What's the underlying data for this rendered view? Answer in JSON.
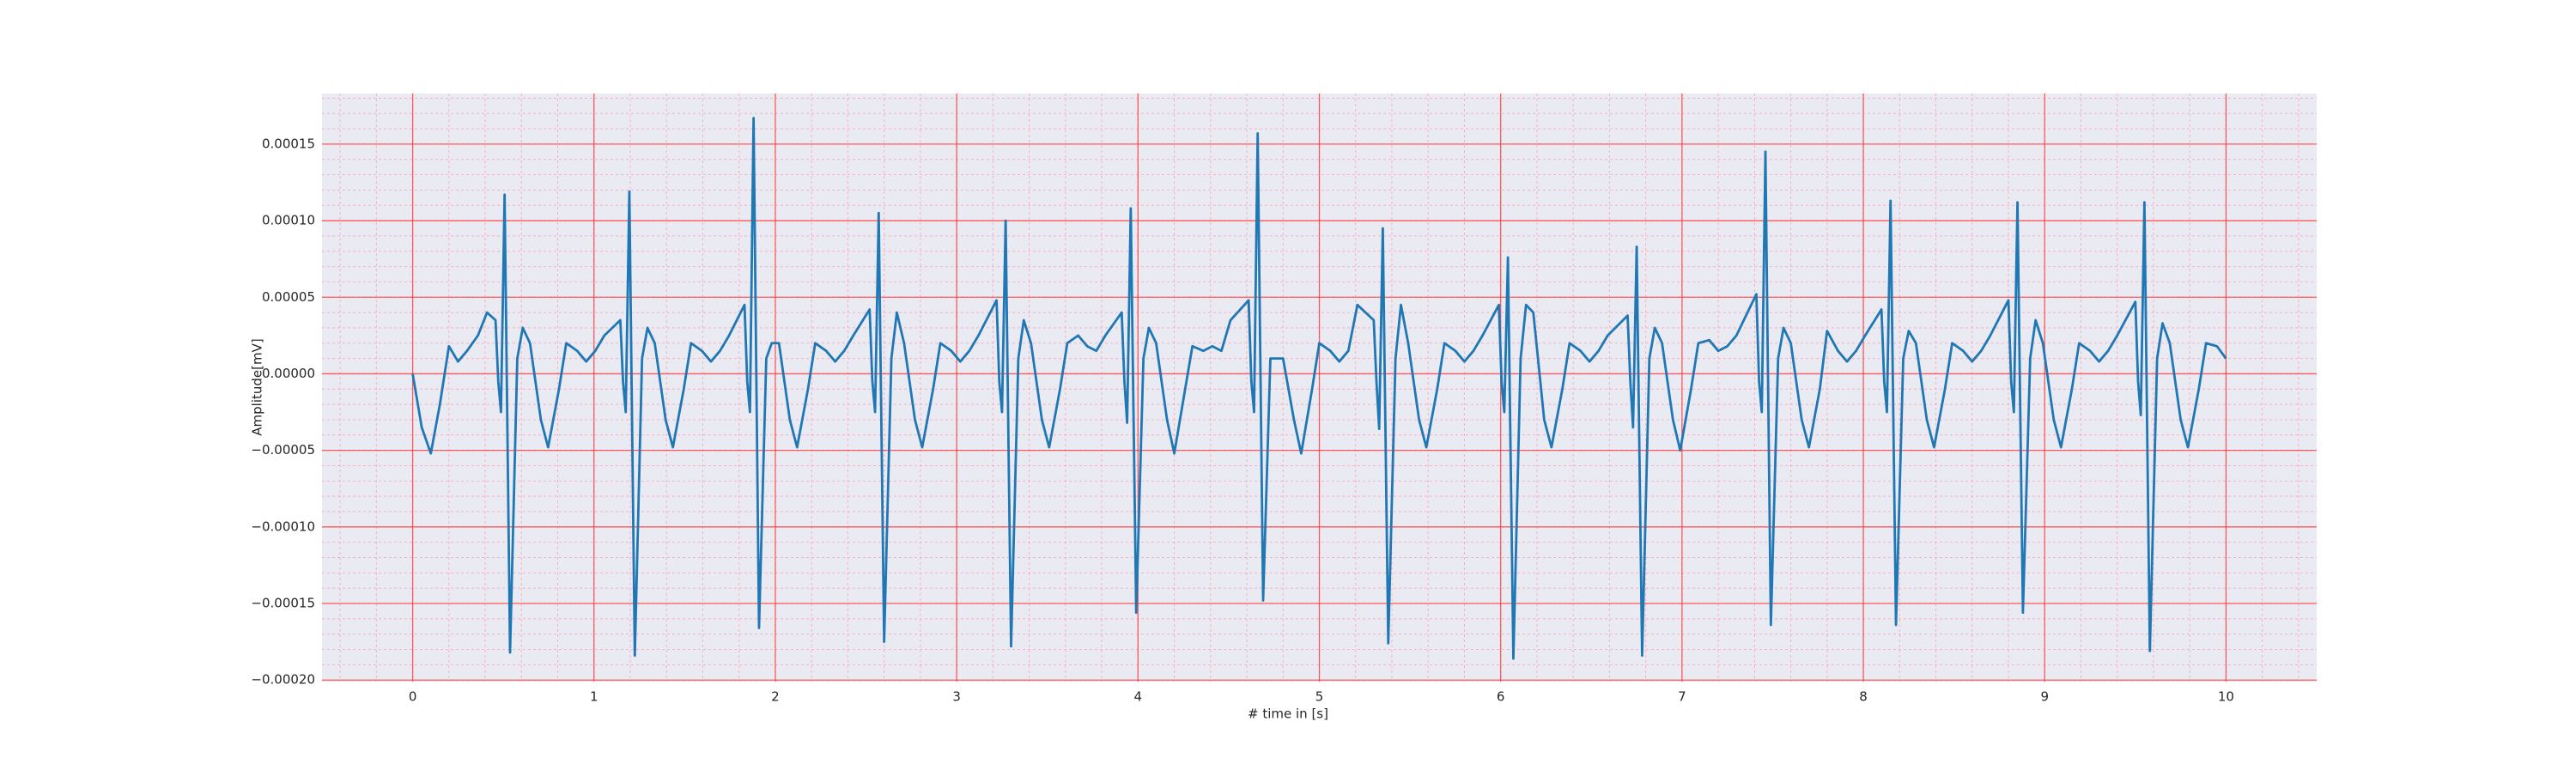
{
  "chart_data": {
    "type": "line",
    "xlabel": "# time in [s]",
    "ylabel": "Amplitude[mV]",
    "color": "#1f77b4",
    "x": [
      0,
      0.05,
      0.1,
      0.15,
      0.2,
      0.25,
      0.3,
      0.36,
      0.41,
      0.457,
      0.472,
      0.487,
      0.507,
      0.537,
      0.577,
      0.607,
      0.647,
      0.707,
      0.747,
      0.807,
      0.847,
      0.907,
      0.957,
      1.007,
      1.057,
      1.145,
      1.16,
      1.175,
      1.195,
      1.225,
      1.265,
      1.295,
      1.335,
      1.395,
      1.435,
      1.495,
      1.535,
      1.595,
      1.645,
      1.695,
      1.745,
      1.83,
      1.845,
      1.86,
      1.88,
      1.91,
      1.95,
      1.98,
      2.02,
      2.08,
      2.12,
      2.18,
      2.22,
      2.28,
      2.33,
      2.38,
      2.43,
      2.52,
      2.535,
      2.55,
      2.57,
      2.6,
      2.64,
      2.67,
      2.71,
      2.77,
      2.81,
      2.87,
      2.91,
      2.97,
      3.02,
      3.07,
      3.12,
      3.22,
      3.235,
      3.25,
      3.27,
      3.3,
      3.34,
      3.37,
      3.41,
      3.47,
      3.51,
      3.57,
      3.61,
      3.67,
      3.72,
      3.77,
      3.82,
      3.91,
      3.925,
      3.94,
      3.96,
      3.99,
      4.03,
      4.06,
      4.1,
      4.16,
      4.2,
      4.26,
      4.3,
      4.36,
      4.41,
      4.46,
      4.51,
      4.61,
      4.625,
      4.64,
      4.66,
      4.69,
      4.73,
      4.76,
      4.8,
      4.86,
      4.9,
      4.96,
      5.0,
      5.06,
      5.11,
      5.16,
      5.21,
      5.3,
      5.315,
      5.33,
      5.35,
      5.38,
      5.42,
      5.45,
      5.49,
      5.55,
      5.59,
      5.65,
      5.69,
      5.75,
      5.8,
      5.85,
      5.9,
      5.99,
      6.005,
      6.02,
      6.04,
      6.07,
      6.11,
      6.14,
      6.18,
      6.24,
      6.28,
      6.34,
      6.38,
      6.44,
      6.49,
      6.54,
      6.59,
      6.7,
      6.715,
      6.73,
      6.75,
      6.78,
      6.82,
      6.85,
      6.89,
      6.95,
      6.99,
      7.05,
      7.09,
      7.15,
      7.2,
      7.25,
      7.3,
      7.41,
      7.425,
      7.44,
      7.46,
      7.49,
      7.53,
      7.56,
      7.6,
      7.66,
      7.7,
      7.76,
      7.8,
      7.86,
      7.91,
      7.96,
      8.01,
      8.1,
      8.115,
      8.13,
      8.15,
      8.18,
      8.22,
      8.25,
      8.29,
      8.35,
      8.39,
      8.45,
      8.49,
      8.55,
      8.6,
      8.65,
      8.7,
      8.8,
      8.815,
      8.83,
      8.85,
      8.88,
      8.92,
      8.95,
      8.99,
      9.05,
      9.09,
      9.15,
      9.19,
      9.25,
      9.3,
      9.35,
      9.4,
      9.5,
      9.515,
      9.53,
      9.55,
      9.58,
      9.62,
      9.65,
      9.69,
      9.75,
      9.79,
      9.85,
      9.89,
      9.95,
      10.0
    ],
    "values": [
      0,
      -3.5e-05,
      -5.2e-05,
      -2e-05,
      1.8e-05,
      8e-06,
      1.5e-05,
      2.5e-05,
      4e-05,
      3.5e-05,
      -5e-06,
      -2.5e-05,
      0.000117,
      -0.000182,
      1e-05,
      3e-05,
      2e-05,
      -3e-05,
      -4.8e-05,
      -1e-05,
      2e-05,
      1.5e-05,
      8e-06,
      1.5e-05,
      2.5e-05,
      3.5e-05,
      -5e-06,
      -2.5e-05,
      0.000119,
      -0.000184,
      1e-05,
      3e-05,
      2e-05,
      -3e-05,
      -4.8e-05,
      -1e-05,
      2e-05,
      1.5e-05,
      8e-06,
      1.5e-05,
      2.5e-05,
      4.5e-05,
      -5e-06,
      -2.5e-05,
      0.000167,
      -0.000166,
      1e-05,
      2e-05,
      2e-05,
      -3e-05,
      -4.8e-05,
      -1e-05,
      2e-05,
      1.5e-05,
      8e-06,
      1.5e-05,
      2.5e-05,
      4.2e-05,
      -5e-06,
      -2.5e-05,
      0.000105,
      -0.000175,
      1e-05,
      4e-05,
      2e-05,
      -3e-05,
      -4.8e-05,
      -1e-05,
      2e-05,
      1.5e-05,
      8e-06,
      1.5e-05,
      2.5e-05,
      4.8e-05,
      -5e-06,
      -2.5e-05,
      0.0001,
      -0.000178,
      1e-05,
      3.5e-05,
      2e-05,
      -3e-05,
      -4.8e-05,
      -1e-05,
      2e-05,
      2.5e-05,
      1.8e-05,
      1.5e-05,
      2.5e-05,
      4e-05,
      -5e-06,
      -3.2e-05,
      0.000108,
      -0.000156,
      1e-05,
      3e-05,
      2e-05,
      -3e-05,
      -5.2e-05,
      -1e-05,
      1.8e-05,
      1.5e-05,
      1.8e-05,
      1.5e-05,
      3.5e-05,
      4.8e-05,
      -5e-06,
      -2.5e-05,
      0.000157,
      -0.000148,
      1e-05,
      1e-05,
      1e-05,
      -3e-05,
      -5.2e-05,
      -1e-05,
      2e-05,
      1.5e-05,
      8e-06,
      1.5e-05,
      4.5e-05,
      3.5e-05,
      -5e-06,
      -3.6e-05,
      9.5e-05,
      -0.000176,
      1e-05,
      4.5e-05,
      2e-05,
      -3e-05,
      -4.8e-05,
      -1e-05,
      2e-05,
      1.5e-05,
      8e-06,
      1.5e-05,
      2.5e-05,
      4.5e-05,
      -5e-06,
      -2.5e-05,
      7.6e-05,
      -0.000186,
      1e-05,
      4.5e-05,
      4e-05,
      -3e-05,
      -4.8e-05,
      -1e-05,
      2e-05,
      1.5e-05,
      8e-06,
      1.5e-05,
      2.5e-05,
      3.8e-05,
      -5e-06,
      -3.5e-05,
      8.3e-05,
      -0.000184,
      1e-05,
      3e-05,
      2e-05,
      -3e-05,
      -5e-05,
      -1e-05,
      2e-05,
      2.2e-05,
      1.5e-05,
      1.8e-05,
      2.5e-05,
      5.2e-05,
      -5e-06,
      -2.5e-05,
      0.000145,
      -0.000164,
      1e-05,
      3e-05,
      2e-05,
      -3e-05,
      -4.8e-05,
      -1e-05,
      2.8e-05,
      1.5e-05,
      8e-06,
      1.5e-05,
      2.5e-05,
      4.2e-05,
      -5e-06,
      -2.5e-05,
      0.000113,
      -0.000164,
      1e-05,
      2.8e-05,
      2e-05,
      -3e-05,
      -4.8e-05,
      -1e-05,
      2e-05,
      1.5e-05,
      8e-06,
      1.5e-05,
      2.5e-05,
      4.8e-05,
      -5e-06,
      -2.5e-05,
      0.000112,
      -0.000156,
      1e-05,
      3.5e-05,
      2e-05,
      -3e-05,
      -4.8e-05,
      -1e-05,
      2e-05,
      1.5e-05,
      8e-06,
      1.5e-05,
      2.5e-05,
      4.7e-05,
      -5e-06,
      -2.7e-05,
      0.000112,
      -0.000181,
      1e-05,
      3.3e-05,
      2e-05,
      -3e-05,
      -4.8e-05,
      -1e-05,
      2e-05,
      1.8e-05,
      1e-05
    ],
    "xlim": [
      -0.5,
      10.5
    ],
    "ylim": [
      -0.000201,
      0.000183
    ],
    "xticks": [
      0,
      1,
      2,
      3,
      4,
      5,
      6,
      7,
      8,
      9,
      10
    ],
    "yticks": [
      {
        "value": -0.0002,
        "label": "−0.00020"
      },
      {
        "value": -0.00015,
        "label": "−0.00015"
      },
      {
        "value": -0.0001,
        "label": "−0.00010"
      },
      {
        "value": -5e-05,
        "label": "−0.00005"
      },
      {
        "value": 0,
        "label": "0.00000"
      },
      {
        "value": 5e-05,
        "label": "0.00005"
      },
      {
        "value": 0.0001,
        "label": "0.00010"
      },
      {
        "value": 0.00015,
        "label": "0.00015"
      }
    ],
    "grid": true,
    "minor_grid": {
      "x": 0.2,
      "y": 1e-05
    }
  }
}
